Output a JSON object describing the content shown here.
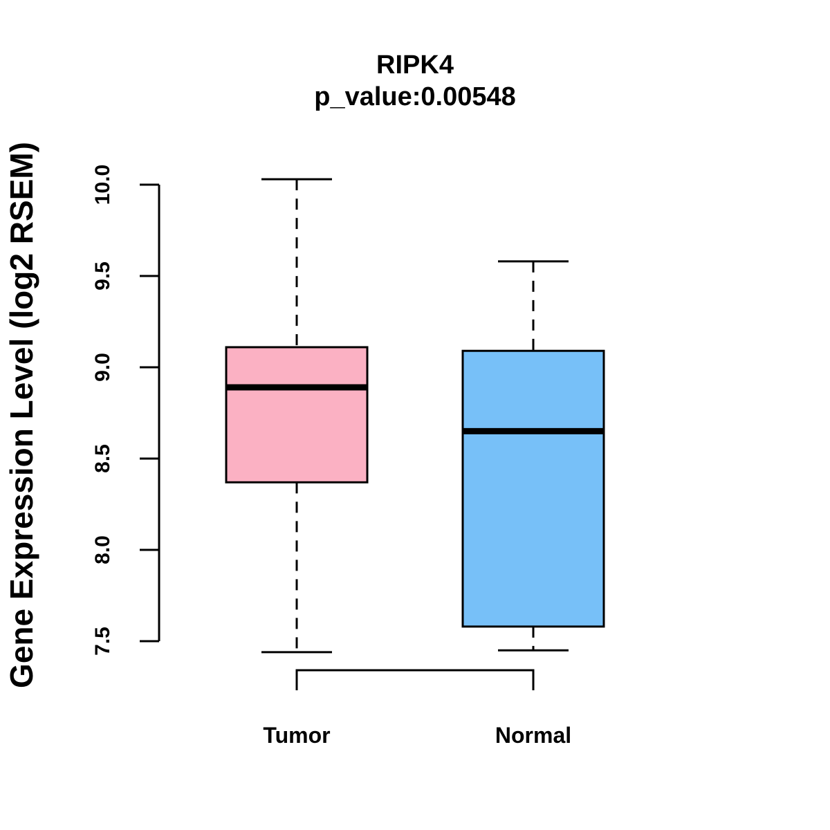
{
  "chart_data": {
    "type": "boxplot",
    "title": "RIPK4",
    "subtitle": "p_value:0.00548",
    "xlabel": "",
    "ylabel": "Gene Expression Level (log2 RSEM)",
    "ylim": [
      7.5,
      10.0
    ],
    "yticks": [
      7.5,
      8.0,
      8.5,
      9.0,
      9.5,
      10.0
    ],
    "ytick_labels": [
      "7.5",
      "8.0",
      "8.5",
      "9.0",
      "9.5",
      "10.0"
    ],
    "categories": [
      "Tumor",
      "Normal"
    ],
    "boxes": [
      {
        "name": "Tumor",
        "min": 7.44,
        "q1": 8.37,
        "median": 8.89,
        "q3": 9.11,
        "max": 10.03,
        "color": "#FBB1C3"
      },
      {
        "name": "Normal",
        "min": 7.45,
        "q1": 7.58,
        "median": 8.65,
        "q3": 9.09,
        "max": 9.58,
        "color": "#77C0F8"
      }
    ],
    "comparison_bracket": [
      "Tumor",
      "Normal"
    ]
  }
}
